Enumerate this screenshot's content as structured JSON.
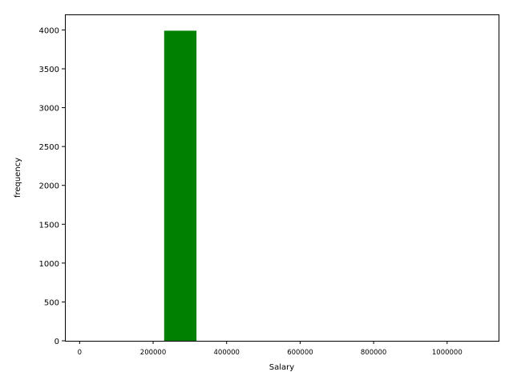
{
  "chart_data": {
    "type": "bar",
    "title": "",
    "xlabel": "Salary",
    "ylabel": "frequency",
    "xlim": [
      -40000,
      1140000
    ],
    "ylim": [
      0,
      4200
    ],
    "x_ticks": [
      0,
      200000,
      400000,
      600000,
      800000,
      1000000
    ],
    "y_ticks": [
      0,
      500,
      1000,
      1500,
      2000,
      2500,
      3000,
      3500,
      4000
    ],
    "bins": [
      {
        "x0": 230000,
        "x1": 318000,
        "value": 3990
      }
    ],
    "bar_color": "#008000",
    "grid": false,
    "legend": "none"
  }
}
